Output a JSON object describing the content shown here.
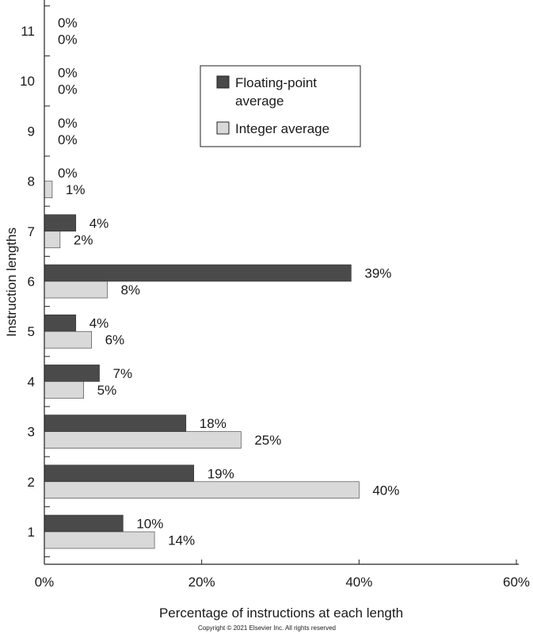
{
  "chart_data": {
    "type": "bar",
    "orientation": "horizontal",
    "categories": [
      "1",
      "2",
      "3",
      "4",
      "5",
      "6",
      "7",
      "8",
      "9",
      "10",
      "11"
    ],
    "series": [
      {
        "name": "Floating-point average",
        "color": "#4a4a4a",
        "values": [
          10,
          19,
          18,
          7,
          4,
          39,
          4,
          0,
          0,
          0,
          0
        ],
        "labels": [
          "10%",
          "19%",
          "18%",
          "7%",
          "4%",
          "39%",
          "4%",
          "0%",
          "0%",
          "0%",
          "0%"
        ]
      },
      {
        "name": "Integer average",
        "color": "#d9d9d9",
        "values": [
          14,
          40,
          25,
          5,
          6,
          8,
          2,
          1,
          0,
          0,
          0
        ],
        "labels": [
          "14%",
          "40%",
          "25%",
          "5%",
          "6%",
          "8%",
          "2%",
          "1%",
          "0%",
          "0%",
          "0%"
        ]
      }
    ],
    "xlabel": "Percentage of instructions at each length",
    "ylabel": "Instruction lengths",
    "xlim": [
      0,
      60
    ],
    "x_ticks": [
      "0%",
      "20%",
      "40%",
      "60%"
    ],
    "legend_lines": [
      [
        "Floating-point",
        "average"
      ],
      [
        "Integer average"
      ]
    ],
    "legend_position": "top-right",
    "grid": false
  },
  "copyright": "Copyright © 2021 Elsevier Inc. All rights reserved"
}
